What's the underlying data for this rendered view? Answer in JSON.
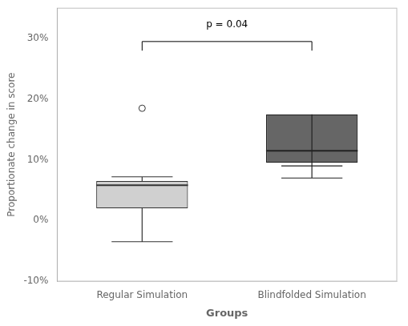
{
  "chart_data": {
    "type": "box",
    "xlabel": "Groups",
    "ylabel": "Proportionate change in score",
    "categories": [
      "Regular Simulation",
      "Blindfolded Simulation"
    ],
    "boxes": [
      {
        "q1": 2.0,
        "median": 5.8,
        "q3": 6.5,
        "whisker_low": -3.5,
        "whisker_high": 7.2,
        "outliers": [
          18.5
        ],
        "color": "#d0d0d0",
        "edgecolor": "#333333"
      },
      {
        "q1": 9.5,
        "median": 11.5,
        "q3": 17.5,
        "whisker_low": 7.0,
        "whisker_high": 9.0,
        "outliers": [],
        "color": "#666666",
        "edgecolor": "#222222"
      }
    ],
    "ylim": [
      -10,
      35
    ],
    "yticks": [
      {
        "value": -10,
        "label": "-10%"
      },
      {
        "value": 0,
        "label": "0%"
      },
      {
        "value": 10,
        "label": "10%"
      },
      {
        "value": 20,
        "label": "20%"
      },
      {
        "value": 30,
        "label": "30%"
      }
    ],
    "bracket": {
      "y": 29.5,
      "drop": 1.5
    },
    "annotations": [
      {
        "text": "p = 0.04",
        "y": 31.5
      }
    ],
    "grid": false
  }
}
